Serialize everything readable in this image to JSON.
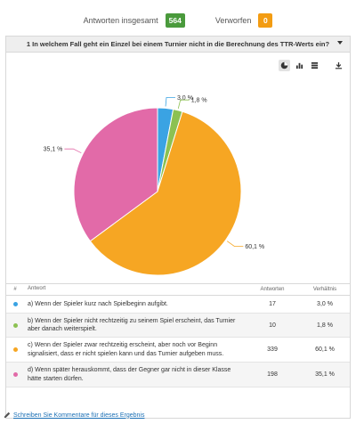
{
  "stats": {
    "total_label": "Antworten insgesamt",
    "total_value": "564",
    "rejected_label": "Verworfen",
    "rejected_value": "0"
  },
  "question": {
    "title": "1 In welchem Fall geht ein Einzel bei einem Turnier nicht in die Berechnung des TTR-Werts ein?"
  },
  "toolbar": {
    "icons": [
      "pie-chart-icon",
      "bar-chart-icon",
      "table-icon",
      "download-icon"
    ]
  },
  "chart_data": {
    "type": "pie",
    "labels": [
      "3,0 %",
      "1,8 %",
      "60,1 %",
      "35,1 %"
    ],
    "values": [
      3.0,
      1.8,
      60.1,
      35.1
    ],
    "colors": [
      "#3aa3e3",
      "#8cc152",
      "#f6a623",
      "#e26aa8"
    ]
  },
  "table": {
    "headers": {
      "num": "#",
      "answer": "Antwort",
      "count": "Antworten",
      "pct": "Verhältnis"
    },
    "rows": [
      {
        "answer": "a) Wenn der Spieler kurz nach Spielbeginn aufgibt.",
        "count": "17",
        "pct": "3,0 %",
        "color": "#3aa3e3"
      },
      {
        "answer": "b) Wenn der Spieler nicht rechtzeitig zu seinem Spiel erscheint, das Turnier aber danach weiterspielt.",
        "count": "10",
        "pct": "1,8 %",
        "color": "#8cc152"
      },
      {
        "answer": "c) Wenn der Spieler zwar rechtzeitig erscheint, aber noch vor Beginn signalisiert, dass er nicht spielen kann und das Turnier aufgeben muss.",
        "count": "339",
        "pct": "60,1 %",
        "color": "#f6a623"
      },
      {
        "answer": "d) Wenn später herauskommt, dass der Gegner gar nicht in dieser Klasse hätte starten dürfen.",
        "count": "198",
        "pct": "35,1 %",
        "color": "#e26aa8"
      }
    ]
  },
  "footer": {
    "link_label": "Schreiben Sie Kommentare für dieses Ergebnis"
  }
}
